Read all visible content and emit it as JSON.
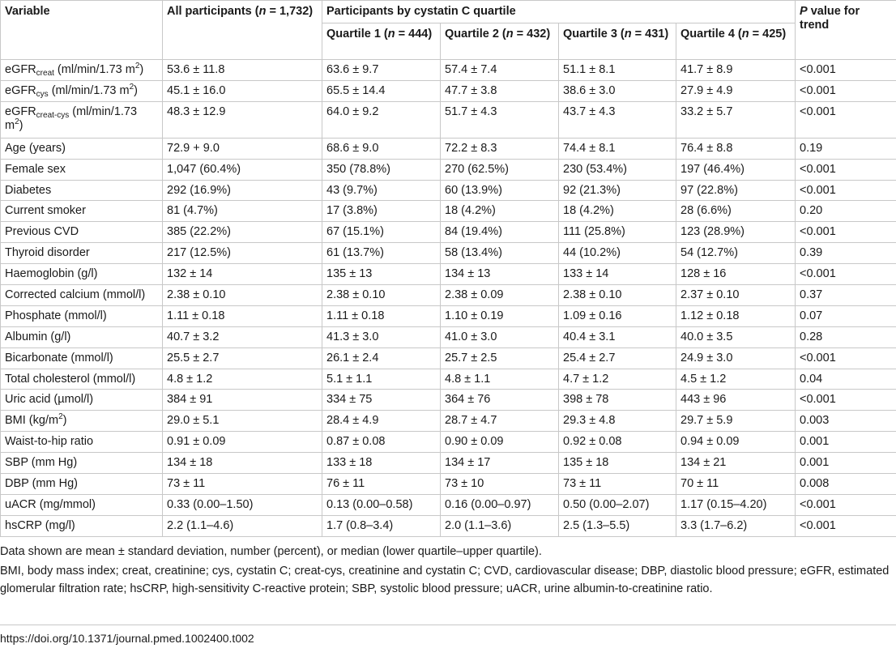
{
  "header": {
    "variable": "Variable",
    "all_participants": [
      "All participants (",
      "n",
      " = 1,732)"
    ],
    "quartile_group": "Participants by cystatin C quartile",
    "p_value": [
      "P",
      " value for trend"
    ],
    "quartiles": [
      [
        "Quartile 1 (",
        "n",
        " = 444)"
      ],
      [
        "Quartile 2 (",
        "n",
        " = 432)"
      ],
      [
        "Quartile 3 (",
        "n",
        " = 431)"
      ],
      [
        "Quartile 4 (",
        "n",
        " = 425)"
      ]
    ]
  },
  "label_parts": {
    "egfr_creat": [
      "eGFR",
      "creat",
      " (ml/min/1.73 m",
      "2",
      ")"
    ],
    "egfr_cys": [
      "eGFR",
      "cys",
      " (ml/min/1.73 m",
      "2",
      ")"
    ],
    "egfr_creat_cys": [
      "eGFR",
      "creat-cys",
      " (ml/min/1.73 m",
      "2",
      ")"
    ],
    "bmi": [
      "BMI (kg/m",
      "2",
      ")"
    ]
  },
  "rows": [
    {
      "label": "",
      "cells": [
        "53.6 ± 11.8",
        "63.6 ± 9.7",
        "57.4 ± 7.4",
        "51.1 ± 8.1",
        "41.7 ± 8.9",
        "<0.001"
      ]
    },
    {
      "label": "",
      "cells": [
        "45.1 ± 16.0",
        "65.5 ± 14.4",
        "47.7 ± 3.8",
        "38.6 ± 3.0",
        "27.9 ± 4.9",
        "<0.001"
      ]
    },
    {
      "label": "",
      "cells": [
        "48.3 ± 12.9",
        "64.0 ± 9.2",
        "51.7 ± 4.3",
        "43.7 ± 4.3",
        "33.2 ± 5.7",
        "<0.001"
      ]
    },
    {
      "label": "Age (years)",
      "cells": [
        "72.9 + 9.0",
        "68.6 ± 9.0",
        "72.2 ± 8.3",
        "74.4 ± 8.1",
        "76.4 ± 8.8",
        "0.19"
      ]
    },
    {
      "label": "Female sex",
      "cells": [
        "1,047 (60.4%)",
        "350 (78.8%)",
        "270 (62.5%)",
        "230 (53.4%)",
        "197 (46.4%)",
        "<0.001"
      ]
    },
    {
      "label": "Diabetes",
      "cells": [
        "292 (16.9%)",
        "43 (9.7%)",
        "60 (13.9%)",
        "92 (21.3%)",
        "97 (22.8%)",
        "<0.001"
      ]
    },
    {
      "label": "Current smoker",
      "cells": [
        "81 (4.7%)",
        "17 (3.8%)",
        "18 (4.2%)",
        "18 (4.2%)",
        "28 (6.6%)",
        "0.20"
      ]
    },
    {
      "label": "Previous CVD",
      "cells": [
        "385 (22.2%)",
        "67 (15.1%)",
        "84 (19.4%)",
        "111 (25.8%)",
        "123 (28.9%)",
        "<0.001"
      ]
    },
    {
      "label": "Thyroid disorder",
      "cells": [
        "217 (12.5%)",
        "61 (13.7%)",
        "58 (13.4%)",
        "44 (10.2%)",
        "54 (12.7%)",
        "0.39"
      ]
    },
    {
      "label": "Haemoglobin (g/l)",
      "cells": [
        "132 ± 14",
        "135 ± 13",
        "134 ± 13",
        "133 ± 14",
        "128 ± 16",
        "<0.001"
      ]
    },
    {
      "label": "Corrected calcium (mmol/l)",
      "cells": [
        "2.38 ± 0.10",
        "2.38 ± 0.10",
        "2.38 ± 0.09",
        "2.38 ± 0.10",
        "2.37 ± 0.10",
        "0.37"
      ]
    },
    {
      "label": "Phosphate (mmol/l)",
      "cells": [
        "1.11 ± 0.18",
        "1.11 ± 0.18",
        "1.10 ± 0.19",
        "1.09 ± 0.16",
        "1.12 ± 0.18",
        "0.07"
      ]
    },
    {
      "label": "Albumin (g/l)",
      "cells": [
        "40.7 ± 3.2",
        "41.3 ± 3.0",
        "41.0 ± 3.0",
        "40.4 ± 3.1",
        "40.0 ± 3.5",
        "0.28"
      ]
    },
    {
      "label": "Bicarbonate (mmol/l)",
      "cells": [
        "25.5 ± 2.7",
        "26.1 ± 2.4",
        "25.7 ± 2.5",
        "25.4 ± 2.7",
        "24.9 ± 3.0",
        "<0.001"
      ]
    },
    {
      "label": "Total cholesterol (mmol/l)",
      "cells": [
        "4.8 ± 1.2",
        "5.1 ± 1.1",
        "4.8 ± 1.1",
        "4.7 ± 1.2",
        "4.5 ± 1.2",
        "0.04"
      ]
    },
    {
      "label": "Uric acid (µmol/l)",
      "cells": [
        "384 ± 91",
        "334 ± 75",
        "364 ± 76",
        "398 ± 78",
        "443 ± 96",
        "<0.001"
      ]
    },
    {
      "label": "",
      "cells": [
        "29.0 ± 5.1",
        "28.4 ± 4.9",
        "28.7 ± 4.7",
        "29.3 ± 4.8",
        "29.7 ± 5.9",
        "0.003"
      ]
    },
    {
      "label": "Waist-to-hip ratio",
      "cells": [
        "0.91 ± 0.09",
        "0.87 ± 0.08",
        "0.90 ± 0.09",
        "0.92 ± 0.08",
        "0.94 ± 0.09",
        "0.001"
      ]
    },
    {
      "label": "SBP (mm Hg)",
      "cells": [
        "134 ± 18",
        "133 ± 18",
        "134 ± 17",
        "135 ± 18",
        "134 ± 21",
        "0.001"
      ]
    },
    {
      "label": "DBP (mm Hg)",
      "cells": [
        "73 ± 11",
        "76 ± 11",
        "73 ± 10",
        "73 ± 11",
        "70 ± 11",
        "0.008"
      ]
    },
    {
      "label": "uACR (mg/mmol)",
      "cells": [
        "0.33 (0.00–1.50)",
        "0.13 (0.00–0.58)",
        "0.16 (0.00–0.97)",
        "0.50 (0.00–2.07)",
        "1.17 (0.15–4.20)",
        "<0.001"
      ]
    },
    {
      "label": "hsCRP (mg/l)",
      "cells": [
        "2.2 (1.1–4.6)",
        "1.7 (0.8–3.4)",
        "2.0 (1.1–3.6)",
        "2.5 (1.3–5.5)",
        "3.3 (1.7–6.2)",
        "<0.001"
      ]
    }
  ],
  "footnotes": [
    "Data shown are mean ± standard deviation, number (percent), or median (lower quartile–upper quartile).",
    "BMI, body mass index; creat, creatinine; cys, cystatin C; creat-cys, creatinine and cystatin C; CVD, cardiovascular disease; DBP, diastolic blood pressure; eGFR, estimated glomerular filtration rate; hsCRP, high-sensitivity C-reactive protein; SBP, systolic blood pressure; uACR, urine albumin-to-creatinine ratio."
  ],
  "doi": "https://doi.org/10.1371/journal.pmed.1002400.t002"
}
